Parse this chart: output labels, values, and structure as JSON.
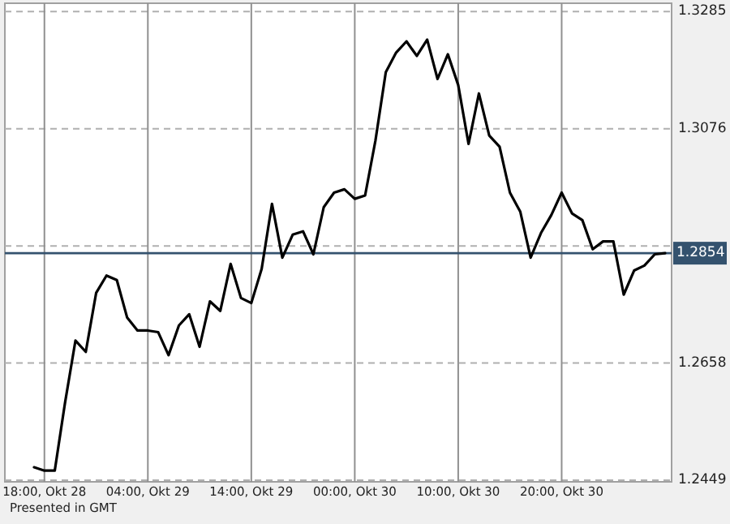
{
  "chart_data": {
    "type": "line",
    "categories": [
      null,
      "18:00, Okt 28",
      null,
      null,
      null,
      null,
      null,
      null,
      null,
      null,
      null,
      "04:00, Okt 29",
      null,
      null,
      null,
      null,
      null,
      null,
      null,
      null,
      null,
      "14:00, Okt 29",
      null,
      null,
      null,
      null,
      null,
      null,
      null,
      null,
      null,
      "00:00, Okt 30",
      null,
      null,
      null,
      null,
      null,
      null,
      null,
      null,
      null,
      "10:00, Okt 30",
      null,
      null,
      null,
      null,
      null,
      null,
      null,
      null,
      null,
      "20:00, Okt 30",
      null,
      null,
      null,
      null,
      null,
      null,
      null,
      null,
      null,
      null
    ],
    "series": [
      {
        "color": "#000000",
        "values": [
          1.2472,
          1.2466,
          1.2466,
          1.2588,
          1.2698,
          1.2678,
          1.2783,
          1.2814,
          1.2806,
          1.2739,
          1.2716,
          1.2716,
          1.2713,
          1.2672,
          1.2725,
          1.2745,
          1.2687,
          1.2768,
          1.2751,
          1.2835,
          1.2774,
          1.2765,
          1.2826,
          1.2942,
          1.2846,
          1.2887,
          1.2893,
          1.2852,
          1.2936,
          1.2962,
          1.2968,
          1.2951,
          1.2957,
          1.3055,
          1.3177,
          1.3212,
          1.3232,
          1.3206,
          1.3235,
          1.3165,
          1.3209,
          1.3154,
          1.3049,
          1.3139,
          1.3064,
          1.3044,
          1.2962,
          1.2928,
          1.2846,
          1.289,
          1.2922,
          1.2962,
          1.2925,
          1.2913,
          1.2861,
          1.2875,
          1.2875,
          1.278,
          1.2823,
          1.2832,
          1.2852,
          1.2854
        ]
      }
    ],
    "ylim": [
      1.2446,
      1.33
    ],
    "yticks": [
      1.2449,
      1.2658,
      {
        "value": 1.2867,
        "label": null
      },
      1.3076,
      1.3285
    ],
    "grid": true,
    "ref_lines": [
      {
        "axis": "y",
        "value": 1.2854,
        "label": "1.2854",
        "color": "#34526e"
      }
    ],
    "annotations": [
      "Presented in GMT"
    ]
  }
}
